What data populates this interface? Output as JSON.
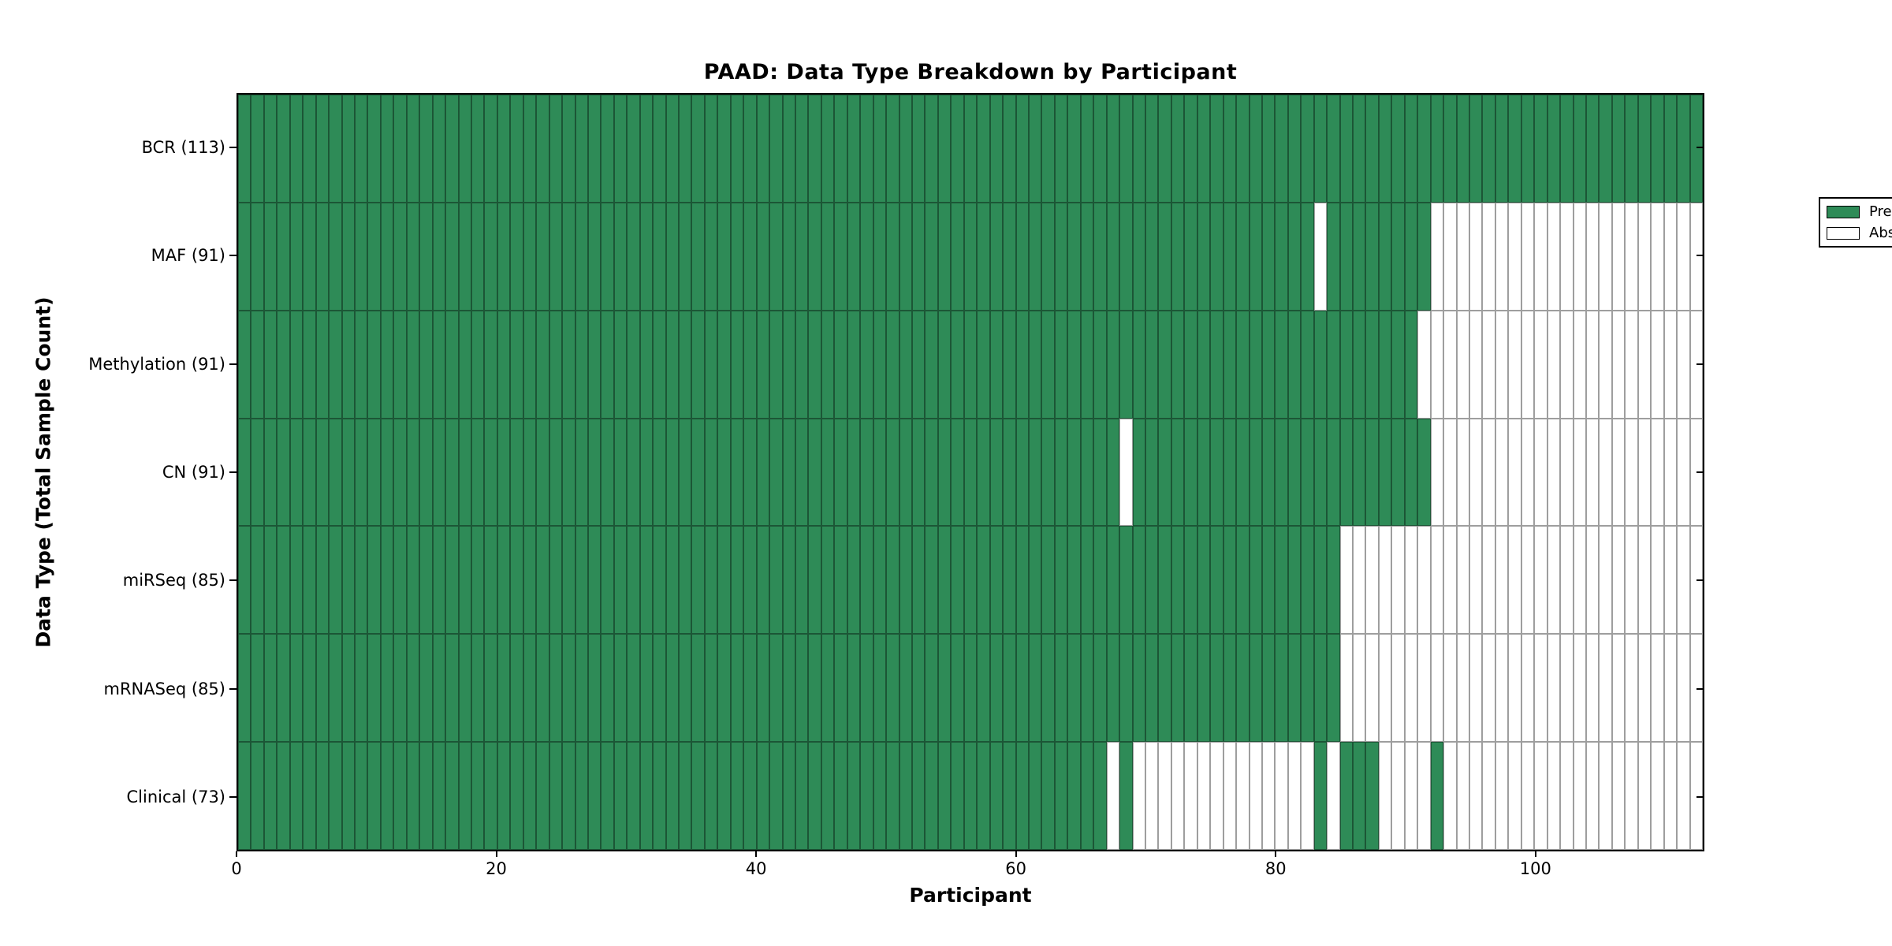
{
  "chart_data": {
    "type": "heatmap",
    "title": "PAAD: Data Type Breakdown by Participant",
    "xlabel": "Participant",
    "ylabel": "Data Type (Total Sample Count)",
    "x_range": [
      0,
      113
    ],
    "n_participants": 113,
    "x_ticks": [
      0,
      20,
      40,
      60,
      80,
      100
    ],
    "grid": "off",
    "legend_position": "upper right",
    "colors": {
      "present": "#2E8B57",
      "absent": "#FFFFFF",
      "spine": "#000000"
    },
    "legend": [
      {
        "label": "Present",
        "color": "#2E8B57"
      },
      {
        "label": "Absent",
        "color": "#FFFFFF"
      }
    ],
    "rows": [
      {
        "label": "BCR (113)",
        "total": 113,
        "present_ranges": [
          [
            0,
            112
          ]
        ]
      },
      {
        "label": "MAF (91)",
        "total": 91,
        "present_ranges": [
          [
            0,
            82
          ],
          [
            84,
            91
          ]
        ]
      },
      {
        "label": "Methylation (91)",
        "total": 91,
        "present_ranges": [
          [
            0,
            90
          ]
        ]
      },
      {
        "label": "CN (91)",
        "total": 91,
        "present_ranges": [
          [
            0,
            67
          ],
          [
            69,
            91
          ]
        ]
      },
      {
        "label": "miRSeq (85)",
        "total": 85,
        "present_ranges": [
          [
            0,
            84
          ]
        ]
      },
      {
        "label": "mRNASeq (85)",
        "total": 85,
        "present_ranges": [
          [
            0,
            84
          ]
        ]
      },
      {
        "label": "Clinical (73)",
        "total": 73,
        "present_ranges": [
          [
            0,
            66
          ],
          [
            68,
            68
          ],
          [
            83,
            83
          ],
          [
            85,
            87
          ],
          [
            92,
            92
          ]
        ]
      }
    ]
  }
}
